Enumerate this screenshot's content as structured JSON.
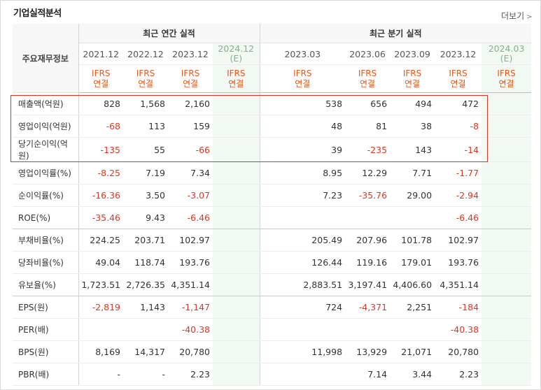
{
  "section_title": "기업실적분석",
  "more_label": "더보기",
  "more_icon": "chevron-right-icon",
  "header": {
    "row_header": "주요재무정보",
    "annual_group": "최근 연간 실적",
    "quarter_group": "최근 분기 실적",
    "annual_periods": [
      "2021.12",
      "2022.12",
      "2023.12",
      "2024.12"
    ],
    "annual_estimate_note": "(E)",
    "quarter_periods": [
      "2023.03",
      "2023.06",
      "2023.09",
      "2023.12",
      "2024.03"
    ],
    "quarter_estimate_note": "(E)",
    "standard_line1": "IFRS",
    "standard_line2": "연결"
  },
  "rows": [
    {
      "label": "매출액(억원)",
      "annual": [
        "828",
        "1,568",
        "2,160",
        ""
      ],
      "quarter": [
        "538",
        "656",
        "494",
        "472",
        ""
      ]
    },
    {
      "label": "영업이익(억원)",
      "annual": [
        "-68",
        "113",
        "159",
        ""
      ],
      "quarter": [
        "48",
        "81",
        "38",
        "-8",
        ""
      ]
    },
    {
      "label": "당기순이익(억원)",
      "annual": [
        "-135",
        "55",
        "-66",
        ""
      ],
      "quarter": [
        "39",
        "-235",
        "143",
        "-14",
        ""
      ]
    },
    {
      "label": "영업이익률(%)",
      "annual": [
        "-8.25",
        "7.19",
        "7.34",
        ""
      ],
      "quarter": [
        "8.95",
        "12.29",
        "7.71",
        "-1.77",
        ""
      ]
    },
    {
      "label": "순이익률(%)",
      "annual": [
        "-16.36",
        "3.50",
        "-3.07",
        ""
      ],
      "quarter": [
        "7.23",
        "-35.76",
        "29.00",
        "-2.94",
        ""
      ]
    },
    {
      "label": "ROE(%)",
      "annual": [
        "-35.46",
        "9.43",
        "-6.46",
        ""
      ],
      "quarter": [
        "",
        "",
        "",
        "-6.46",
        ""
      ]
    },
    {
      "label": "부채비율(%)",
      "annual": [
        "224.25",
        "203.71",
        "102.97",
        ""
      ],
      "quarter": [
        "205.49",
        "207.96",
        "101.78",
        "102.97",
        ""
      ]
    },
    {
      "label": "당좌비율(%)",
      "annual": [
        "49.04",
        "118.74",
        "193.76",
        ""
      ],
      "quarter": [
        "126.44",
        "119.16",
        "179.01",
        "193.76",
        ""
      ]
    },
    {
      "label": "유보율(%)",
      "annual": [
        "1,723.51",
        "2,726.35",
        "4,351.14",
        ""
      ],
      "quarter": [
        "2,883.51",
        "3,197.41",
        "4,406.60",
        "4,351.14",
        ""
      ]
    },
    {
      "label": "EPS(원)",
      "annual": [
        "-2,819",
        "1,143",
        "-1,147",
        ""
      ],
      "quarter": [
        "724",
        "-4,371",
        "2,251",
        "-184",
        ""
      ]
    },
    {
      "label": "PER(배)",
      "annual": [
        "",
        "",
        "-40.38",
        ""
      ],
      "quarter": [
        "",
        "",
        "",
        "-40.38",
        ""
      ]
    },
    {
      "label": "BPS(원)",
      "annual": [
        "8,169",
        "14,317",
        "20,780",
        ""
      ],
      "quarter": [
        "11,998",
        "13,929",
        "21,071",
        "20,780",
        ""
      ]
    },
    {
      "label": "PBR(배)",
      "annual": [
        "-",
        "-",
        "2.23",
        ""
      ],
      "quarter": [
        "",
        "7.14",
        "3.44",
        "2.23",
        ""
      ]
    }
  ],
  "colors": {
    "negative": "#e8321f",
    "ifrs": "#e8561c",
    "estimate_bg": "#f2f8f2",
    "highlight_box": "#e8321f"
  }
}
